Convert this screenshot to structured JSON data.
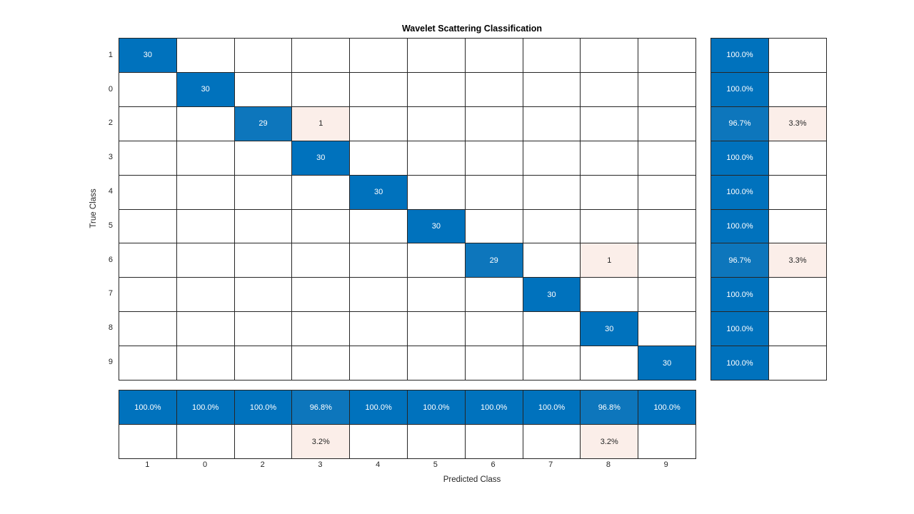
{
  "chart_data": {
    "type": "heatmap",
    "subtype": "confusion-matrix",
    "title": "Wavelet Scattering Classification",
    "xlabel": "Predicted Class",
    "ylabel": "True Class",
    "classes": [
      "1",
      "0",
      "2",
      "3",
      "4",
      "5",
      "6",
      "7",
      "8",
      "9"
    ],
    "max_count": 30,
    "matrix": [
      [
        30,
        "",
        "",
        "",
        "",
        "",
        "",
        "",
        "",
        ""
      ],
      [
        "",
        30,
        "",
        "",
        "",
        "",
        "",
        "",
        "",
        ""
      ],
      [
        "",
        "",
        29,
        1,
        "",
        "",
        "",
        "",
        "",
        ""
      ],
      [
        "",
        "",
        "",
        30,
        "",
        "",
        "",
        "",
        "",
        ""
      ],
      [
        "",
        "",
        "",
        "",
        30,
        "",
        "",
        "",
        "",
        ""
      ],
      [
        "",
        "",
        "",
        "",
        "",
        30,
        "",
        "",
        "",
        ""
      ],
      [
        "",
        "",
        "",
        "",
        "",
        "",
        29,
        "",
        1,
        ""
      ],
      [
        "",
        "",
        "",
        "",
        "",
        "",
        "",
        30,
        "",
        ""
      ],
      [
        "",
        "",
        "",
        "",
        "",
        "",
        "",
        "",
        30,
        ""
      ],
      [
        "",
        "",
        "",
        "",
        "",
        "",
        "",
        "",
        "",
        30
      ]
    ],
    "row_summary": [
      [
        "100.0%",
        ""
      ],
      [
        "100.0%",
        ""
      ],
      [
        "96.7%",
        "3.3%"
      ],
      [
        "100.0%",
        ""
      ],
      [
        "100.0%",
        ""
      ],
      [
        "100.0%",
        ""
      ],
      [
        "96.7%",
        "3.3%"
      ],
      [
        "100.0%",
        ""
      ],
      [
        "100.0%",
        ""
      ],
      [
        "100.0%",
        ""
      ]
    ],
    "col_summary": [
      [
        "100.0%",
        "100.0%",
        "100.0%",
        "96.8%",
        "100.0%",
        "100.0%",
        "100.0%",
        "100.0%",
        "96.8%",
        "100.0%"
      ],
      [
        "",
        "",
        "",
        "3.2%",
        "",
        "",
        "",
        "",
        "3.2%",
        ""
      ]
    ],
    "colors": {
      "diag_full": "#0072bd",
      "diag_partial": "#0d76bc",
      "offdiag_tint": "#fbeee9",
      "grid_line": "#262626",
      "text_on_blue": "#ffffff",
      "text_dark": "#262626",
      "background": "#ffffff"
    },
    "layout": {
      "grid_on": true,
      "row_summary_position": "right",
      "col_summary_position": "bottom"
    }
  }
}
